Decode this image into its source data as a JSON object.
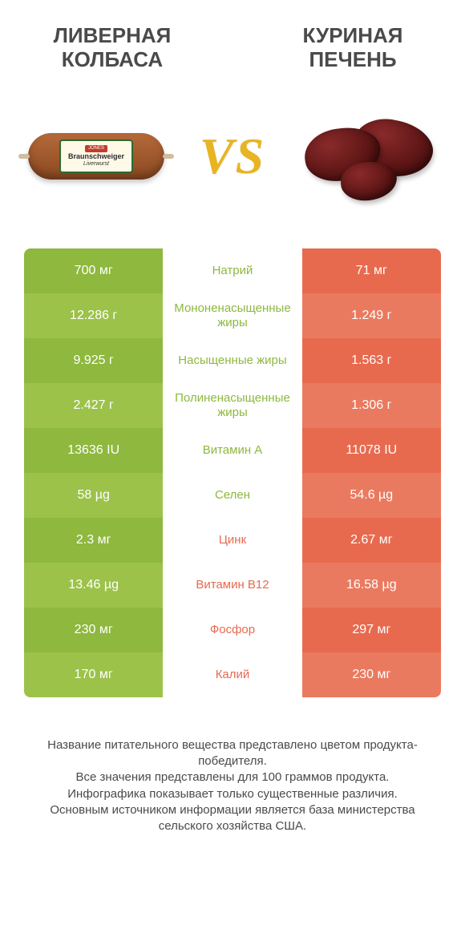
{
  "header": {
    "left_title": "ЛИВЕРНАЯ КОЛБАСА",
    "right_title": "КУРИНАЯ ПЕЧЕНЬ",
    "vs_text": "VS",
    "sausage_label": {
      "brand": "JONES",
      "line1": "Braunschweiger",
      "line2": "Liverwurst"
    }
  },
  "colors": {
    "left": "#8eb83e",
    "left_alt": "#9cc24a",
    "right": "#e86a4e",
    "right_alt": "#ea7a5f",
    "label_left": "#8eb83e",
    "label_right": "#e86a4e",
    "title_text": "#4a4a4a"
  },
  "rows": [
    {
      "label": "Натрий",
      "left": "700 мг",
      "right": "71 мг",
      "winner": "left"
    },
    {
      "label": "Мононенасыщенные жиры",
      "left": "12.286 г",
      "right": "1.249 г",
      "winner": "left"
    },
    {
      "label": "Насыщенные жиры",
      "left": "9.925 г",
      "right": "1.563 г",
      "winner": "left"
    },
    {
      "label": "Полиненасыщенные жиры",
      "left": "2.427 г",
      "right": "1.306 г",
      "winner": "left"
    },
    {
      "label": "Витамин A",
      "left": "13636 IU",
      "right": "11078 IU",
      "winner": "left"
    },
    {
      "label": "Селен",
      "left": "58 µg",
      "right": "54.6 µg",
      "winner": "left"
    },
    {
      "label": "Цинк",
      "left": "2.3 мг",
      "right": "2.67 мг",
      "winner": "right"
    },
    {
      "label": "Витамин B12",
      "left": "13.46 µg",
      "right": "16.58 µg",
      "winner": "right"
    },
    {
      "label": "Фосфор",
      "left": "230 мг",
      "right": "297 мг",
      "winner": "right"
    },
    {
      "label": "Калий",
      "left": "170 мг",
      "right": "230 мг",
      "winner": "right"
    }
  ],
  "footer": {
    "line1": "Название питательного вещества представлено цветом продукта-победителя.",
    "line2": "Все значения представлены для 100 граммов продукта.",
    "line3": "Инфографика показывает только существенные различия.",
    "line4": "Основным источником информации является база министерства сельского хозяйства США."
  }
}
